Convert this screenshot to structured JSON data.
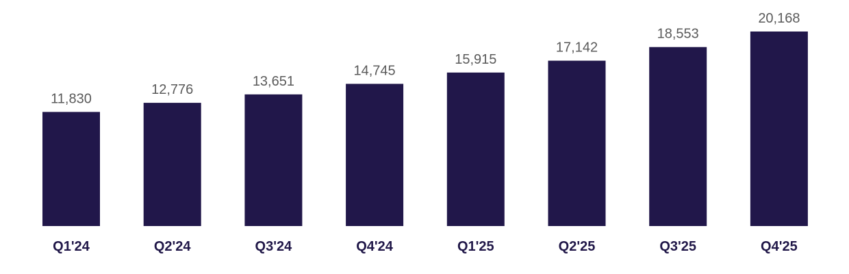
{
  "chart_data": {
    "type": "bar",
    "categories": [
      "Q1'24",
      "Q2'24",
      "Q3'24",
      "Q4'24",
      "Q1'25",
      "Q2'25",
      "Q3'25",
      "Q4'25"
    ],
    "values": [
      11830,
      12776,
      13651,
      14745,
      15915,
      17142,
      18553,
      20168
    ],
    "value_labels": [
      "11,830",
      "12,776",
      "13,651",
      "14,745",
      "15,915",
      "17,142",
      "18,553",
      "20,168"
    ],
    "title": "",
    "xlabel": "",
    "ylabel": "",
    "grid": false,
    "legend": "none",
    "colors": {
      "bar": "#21174a",
      "value_text": "#5a5a5a",
      "category_text": "#201748"
    }
  }
}
